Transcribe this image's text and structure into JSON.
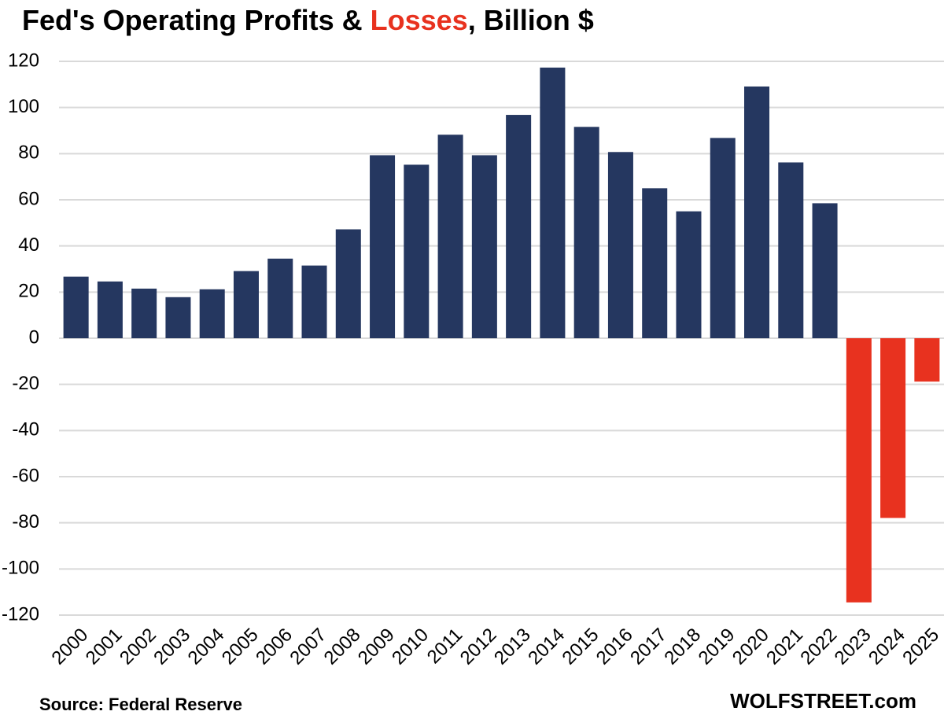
{
  "chart_data": {
    "type": "bar",
    "title": [
      {
        "text": "Fed's Operating Profits & ",
        "color": "#000000"
      },
      {
        "text": "Losses",
        "color": "#e8321f"
      },
      {
        "text": ", Billion $",
        "color": "#000000"
      }
    ],
    "source": "Source: Federal Reserve",
    "credit": "WOLFSTREET.com",
    "categories": [
      "2000",
      "2001",
      "2002",
      "2003",
      "2004",
      "2005",
      "2006",
      "2007",
      "2008",
      "2009",
      "2010",
      "2011",
      "2012",
      "2013",
      "2014",
      "2015",
      "2016",
      "2017",
      "2018",
      "2019",
      "2020",
      "2021",
      "2022",
      "2023",
      "2024",
      "2025"
    ],
    "values": [
      26.7,
      24.6,
      21.5,
      17.8,
      21.2,
      29.1,
      34.5,
      31.5,
      47.2,
      79.3,
      75.2,
      88.2,
      79.3,
      96.8,
      117.3,
      91.6,
      80.7,
      65.0,
      55.0,
      86.8,
      109.1,
      76.2,
      58.5,
      -114.5,
      -77.9,
      -18.8
    ],
    "color": "#253760",
    "negative_color": "#e8321f",
    "ylim": [
      -120,
      120
    ],
    "yticks": [
      -120,
      -100,
      -80,
      -60,
      -40,
      -20,
      0,
      20,
      40,
      60,
      80,
      100,
      120
    ],
    "grid": true
  }
}
